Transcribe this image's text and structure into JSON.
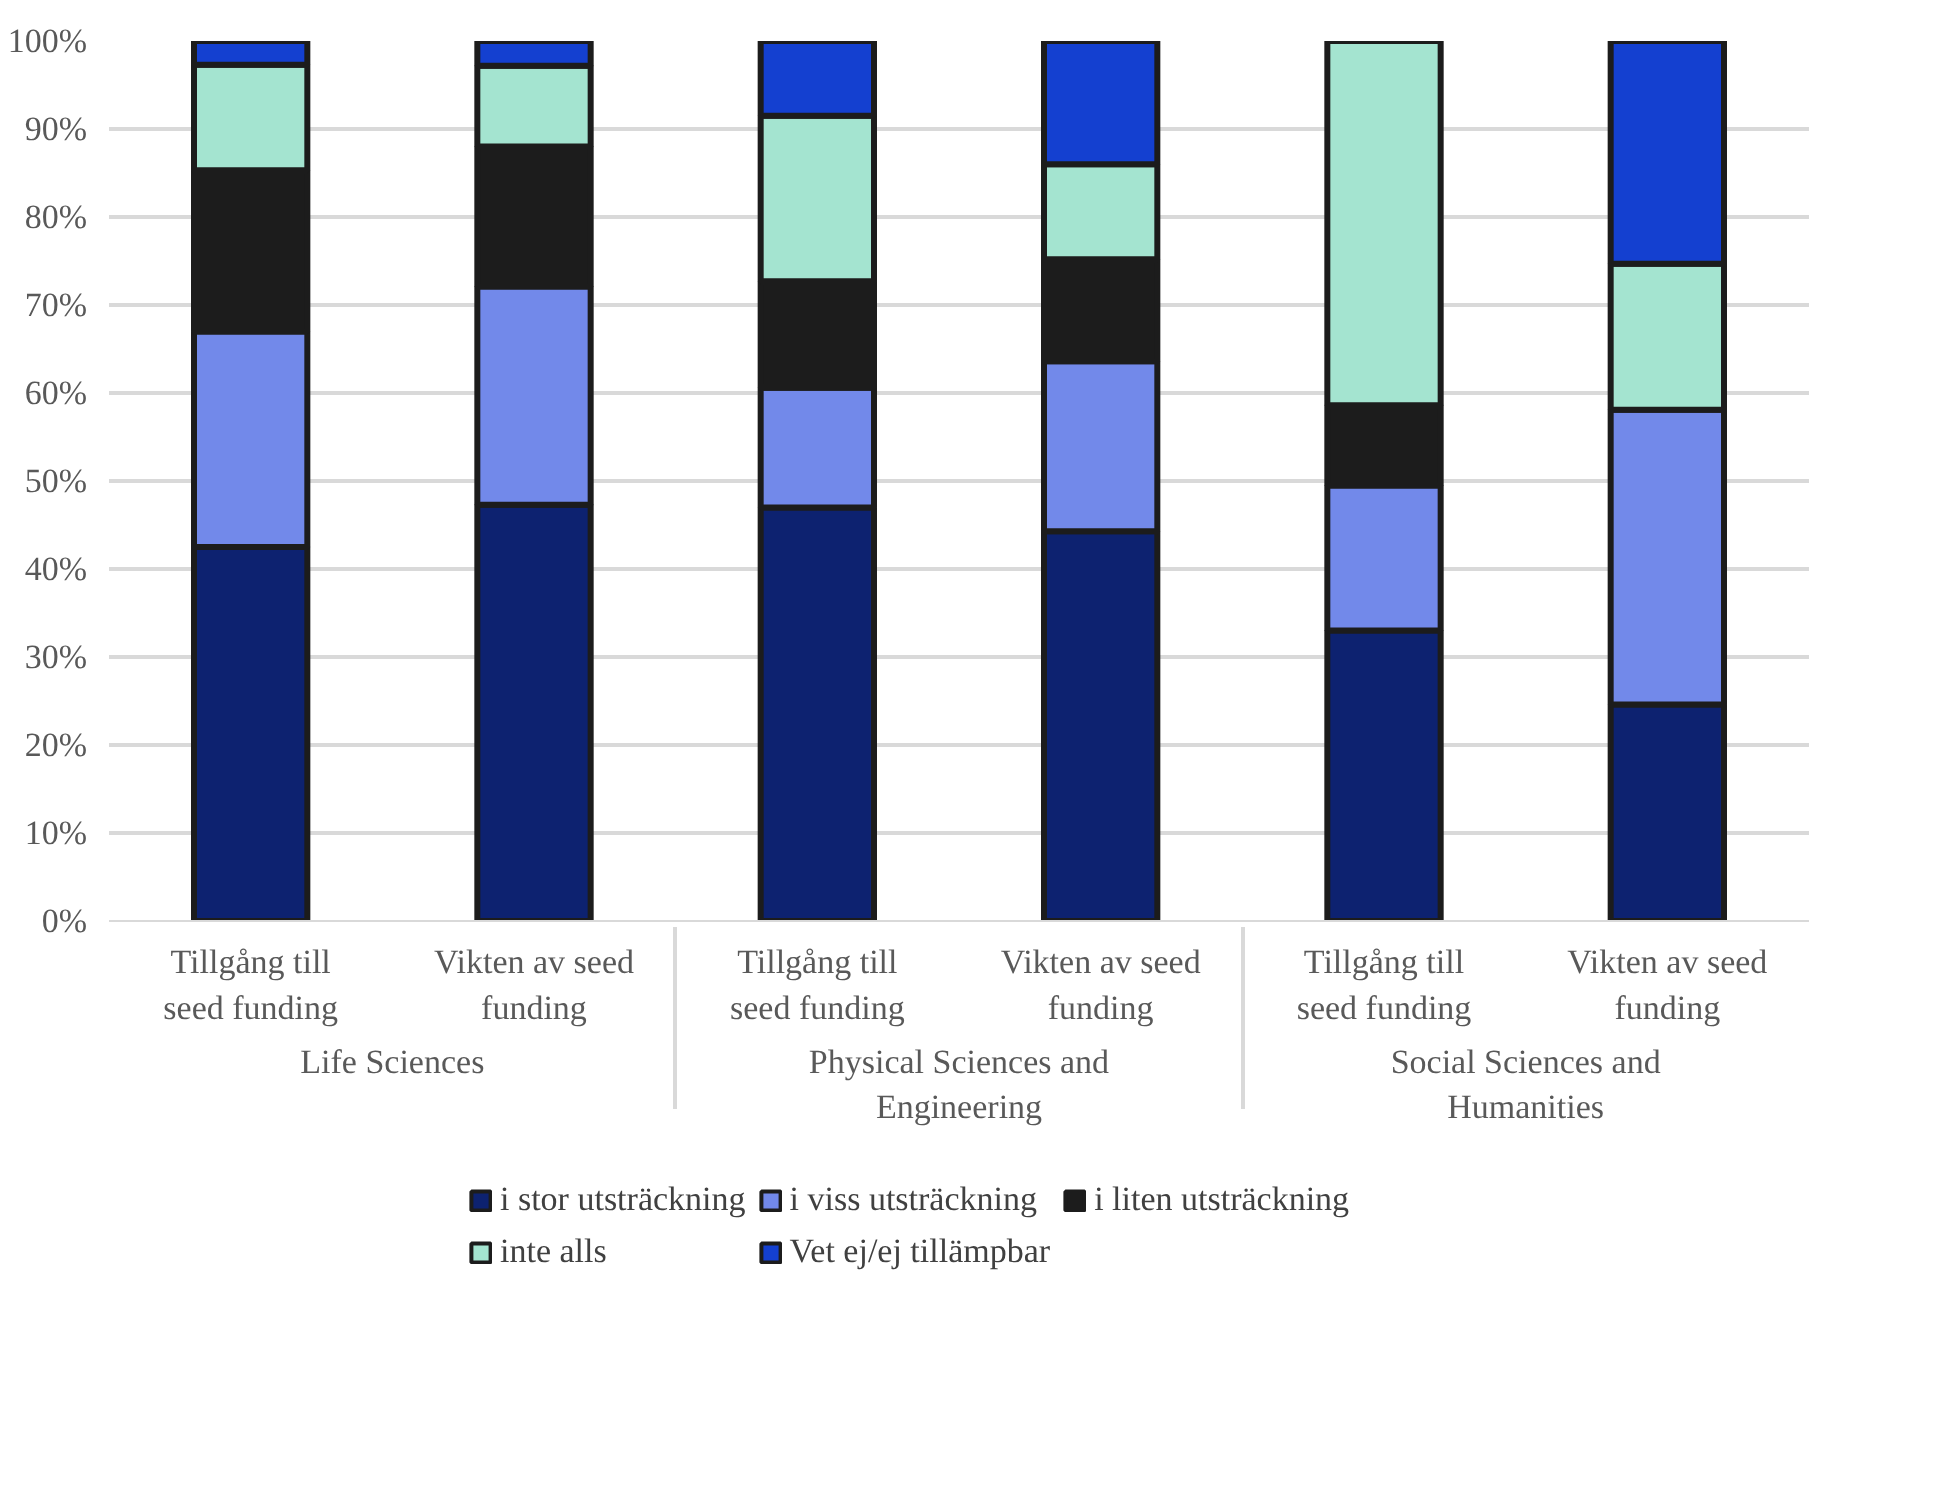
{
  "chart_data": {
    "type": "bar",
    "stacked": true,
    "categories": [
      "Tillgång till seed funding",
      "Vikten av seed funding",
      "Tillgång till seed funding",
      "Vikten av seed funding",
      "Tillgång till seed funding",
      "Vikten av seed funding"
    ],
    "annotations": [
      "Life Sciences",
      "Physical Sciences and Engineering",
      "Social Sciences and Humanities"
    ],
    "series": [
      {
        "name": "i stor utsträckning",
        "color": "#0d2270",
        "values": [
          42.5,
          47.3,
          47,
          44.3,
          33,
          24.6
        ]
      },
      {
        "name": "i viss utsträckning",
        "color": "#7289ea",
        "values": [
          24.5,
          24.8,
          13.6,
          19.3,
          16.5,
          33.5
        ]
      },
      {
        "name": "i liten utsträckning",
        "color": "#1c1c1c",
        "values": [
          18.3,
          15.9,
          12.1,
          11.6,
          9.1,
          0
        ]
      },
      {
        "name": "inte alls",
        "color": "#a4e4d0",
        "values": [
          12,
          9.2,
          18.8,
          10.8,
          41.4,
          16.6
        ]
      },
      {
        "name": "Vet ej/ej tillämpbar",
        "color": "#1440d0",
        "values": [
          2.7,
          2.8,
          8.5,
          14,
          0,
          25.3
        ]
      }
    ],
    "ylim": [
      0,
      100
    ],
    "yticks": [
      {
        "value": 0,
        "label": "0%"
      },
      {
        "value": 10,
        "label": "10%"
      },
      {
        "value": 20,
        "label": "20%"
      },
      {
        "value": 30,
        "label": "30%"
      },
      {
        "value": 40,
        "label": "40%"
      },
      {
        "value": 50,
        "label": "50%"
      },
      {
        "value": 60,
        "label": "60%"
      },
      {
        "value": 70,
        "label": "70%"
      },
      {
        "value": 80,
        "label": "80%"
      },
      {
        "value": 90,
        "label": "90%"
      },
      {
        "value": 100,
        "label": "100%"
      }
    ],
    "grid": "y",
    "legend": "bottom"
  }
}
